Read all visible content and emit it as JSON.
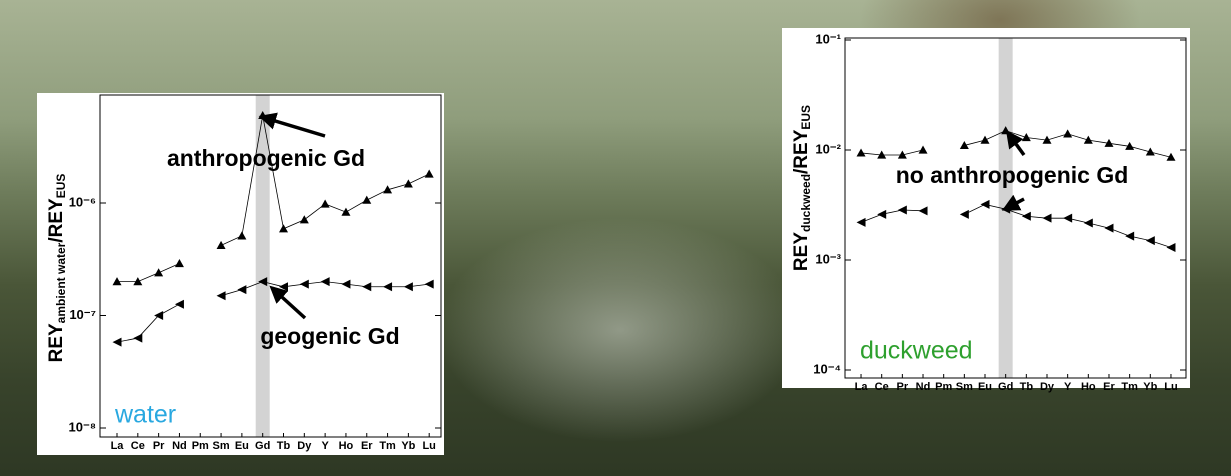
{
  "chart_data": [
    {
      "type": "line",
      "categories": [
        "La",
        "Ce",
        "Pr",
        "Nd",
        "Pm",
        "Sm",
        "Eu",
        "Gd",
        "Tb",
        "Dy",
        "Y",
        "Ho",
        "Er",
        "Tm",
        "Yb",
        "Lu"
      ],
      "series": [
        {
          "color": "#000000",
          "marker": "triangle-up",
          "values": [
            2e-07,
            2e-07,
            2.4e-07,
            2.9e-07,
            null,
            4.2e-07,
            5.1e-07,
            6e-06,
            5.9e-07,
            7.1e-07,
            9.8e-07,
            8.3e-07,
            1.06e-06,
            1.31e-06,
            1.48e-06,
            1.81e-06
          ]
        },
        {
          "color": "#000000",
          "marker": "triangle-left",
          "values": [
            5.8e-08,
            6.3e-08,
            1e-07,
            1.26e-07,
            null,
            1.5e-07,
            1.7e-07,
            2e-07,
            1.8e-07,
            1.9e-07,
            2e-07,
            1.9e-07,
            1.8e-07,
            1.8e-07,
            1.8e-07,
            1.9e-07
          ]
        }
      ],
      "log_y": true,
      "ylim": [
        1e-08,
        1e-05
      ],
      "yticks": [
        {
          "value": 1e-08,
          "label": "10⁻⁸"
        },
        {
          "value": 1e-07,
          "label": "10⁻⁷"
        },
        {
          "value": 1e-06,
          "label": "10⁻⁶"
        }
      ],
      "y_label": [
        "REY",
        "ambient water",
        "/REY",
        "EUS"
      ],
      "highlight": "Gd",
      "annotations": [
        "anthropogenic Gd",
        "geogenic Gd"
      ],
      "label": "water",
      "label_color": "#29a8e0"
    },
    {
      "type": "line",
      "categories": [
        "La",
        "Ce",
        "Pr",
        "Nd",
        "Pm",
        "Sm",
        "Eu",
        "Gd",
        "Tb",
        "Dy",
        "Y",
        "Ho",
        "Er",
        "Tm",
        "Yb",
        "Lu"
      ],
      "series": [
        {
          "color": "#000000",
          "marker": "triangle-up",
          "values": [
            0.0094,
            0.009,
            0.009,
            0.01,
            null,
            0.011,
            0.0123,
            0.015,
            0.013,
            0.0123,
            0.014,
            0.0123,
            0.0115,
            0.0108,
            0.0096,
            0.0086
          ]
        },
        {
          "color": "#000000",
          "marker": "triangle-left",
          "values": [
            0.0022,
            0.0026,
            0.00285,
            0.0028,
            null,
            0.0026,
            0.0032,
            0.0029,
            0.0025,
            0.0024,
            0.0024,
            0.00217,
            0.00195,
            0.00165,
            0.0015,
            0.0013
          ]
        }
      ],
      "log_y": true,
      "ylim": [
        0.0001,
        0.1
      ],
      "yticks": [
        {
          "value": 0.0001,
          "label": "10⁻⁴"
        },
        {
          "value": 0.001,
          "label": "10⁻³"
        },
        {
          "value": 0.01,
          "label": "10⁻²"
        },
        {
          "value": 0.1,
          "label": "10⁻¹"
        }
      ],
      "y_label": [
        "REY",
        "duckweed",
        "/REY",
        "EUS"
      ],
      "highlight": "Gd",
      "annotations": [
        "no anthropogenic Gd"
      ],
      "label": "duckweed",
      "label_color": "#2ea02e"
    }
  ]
}
